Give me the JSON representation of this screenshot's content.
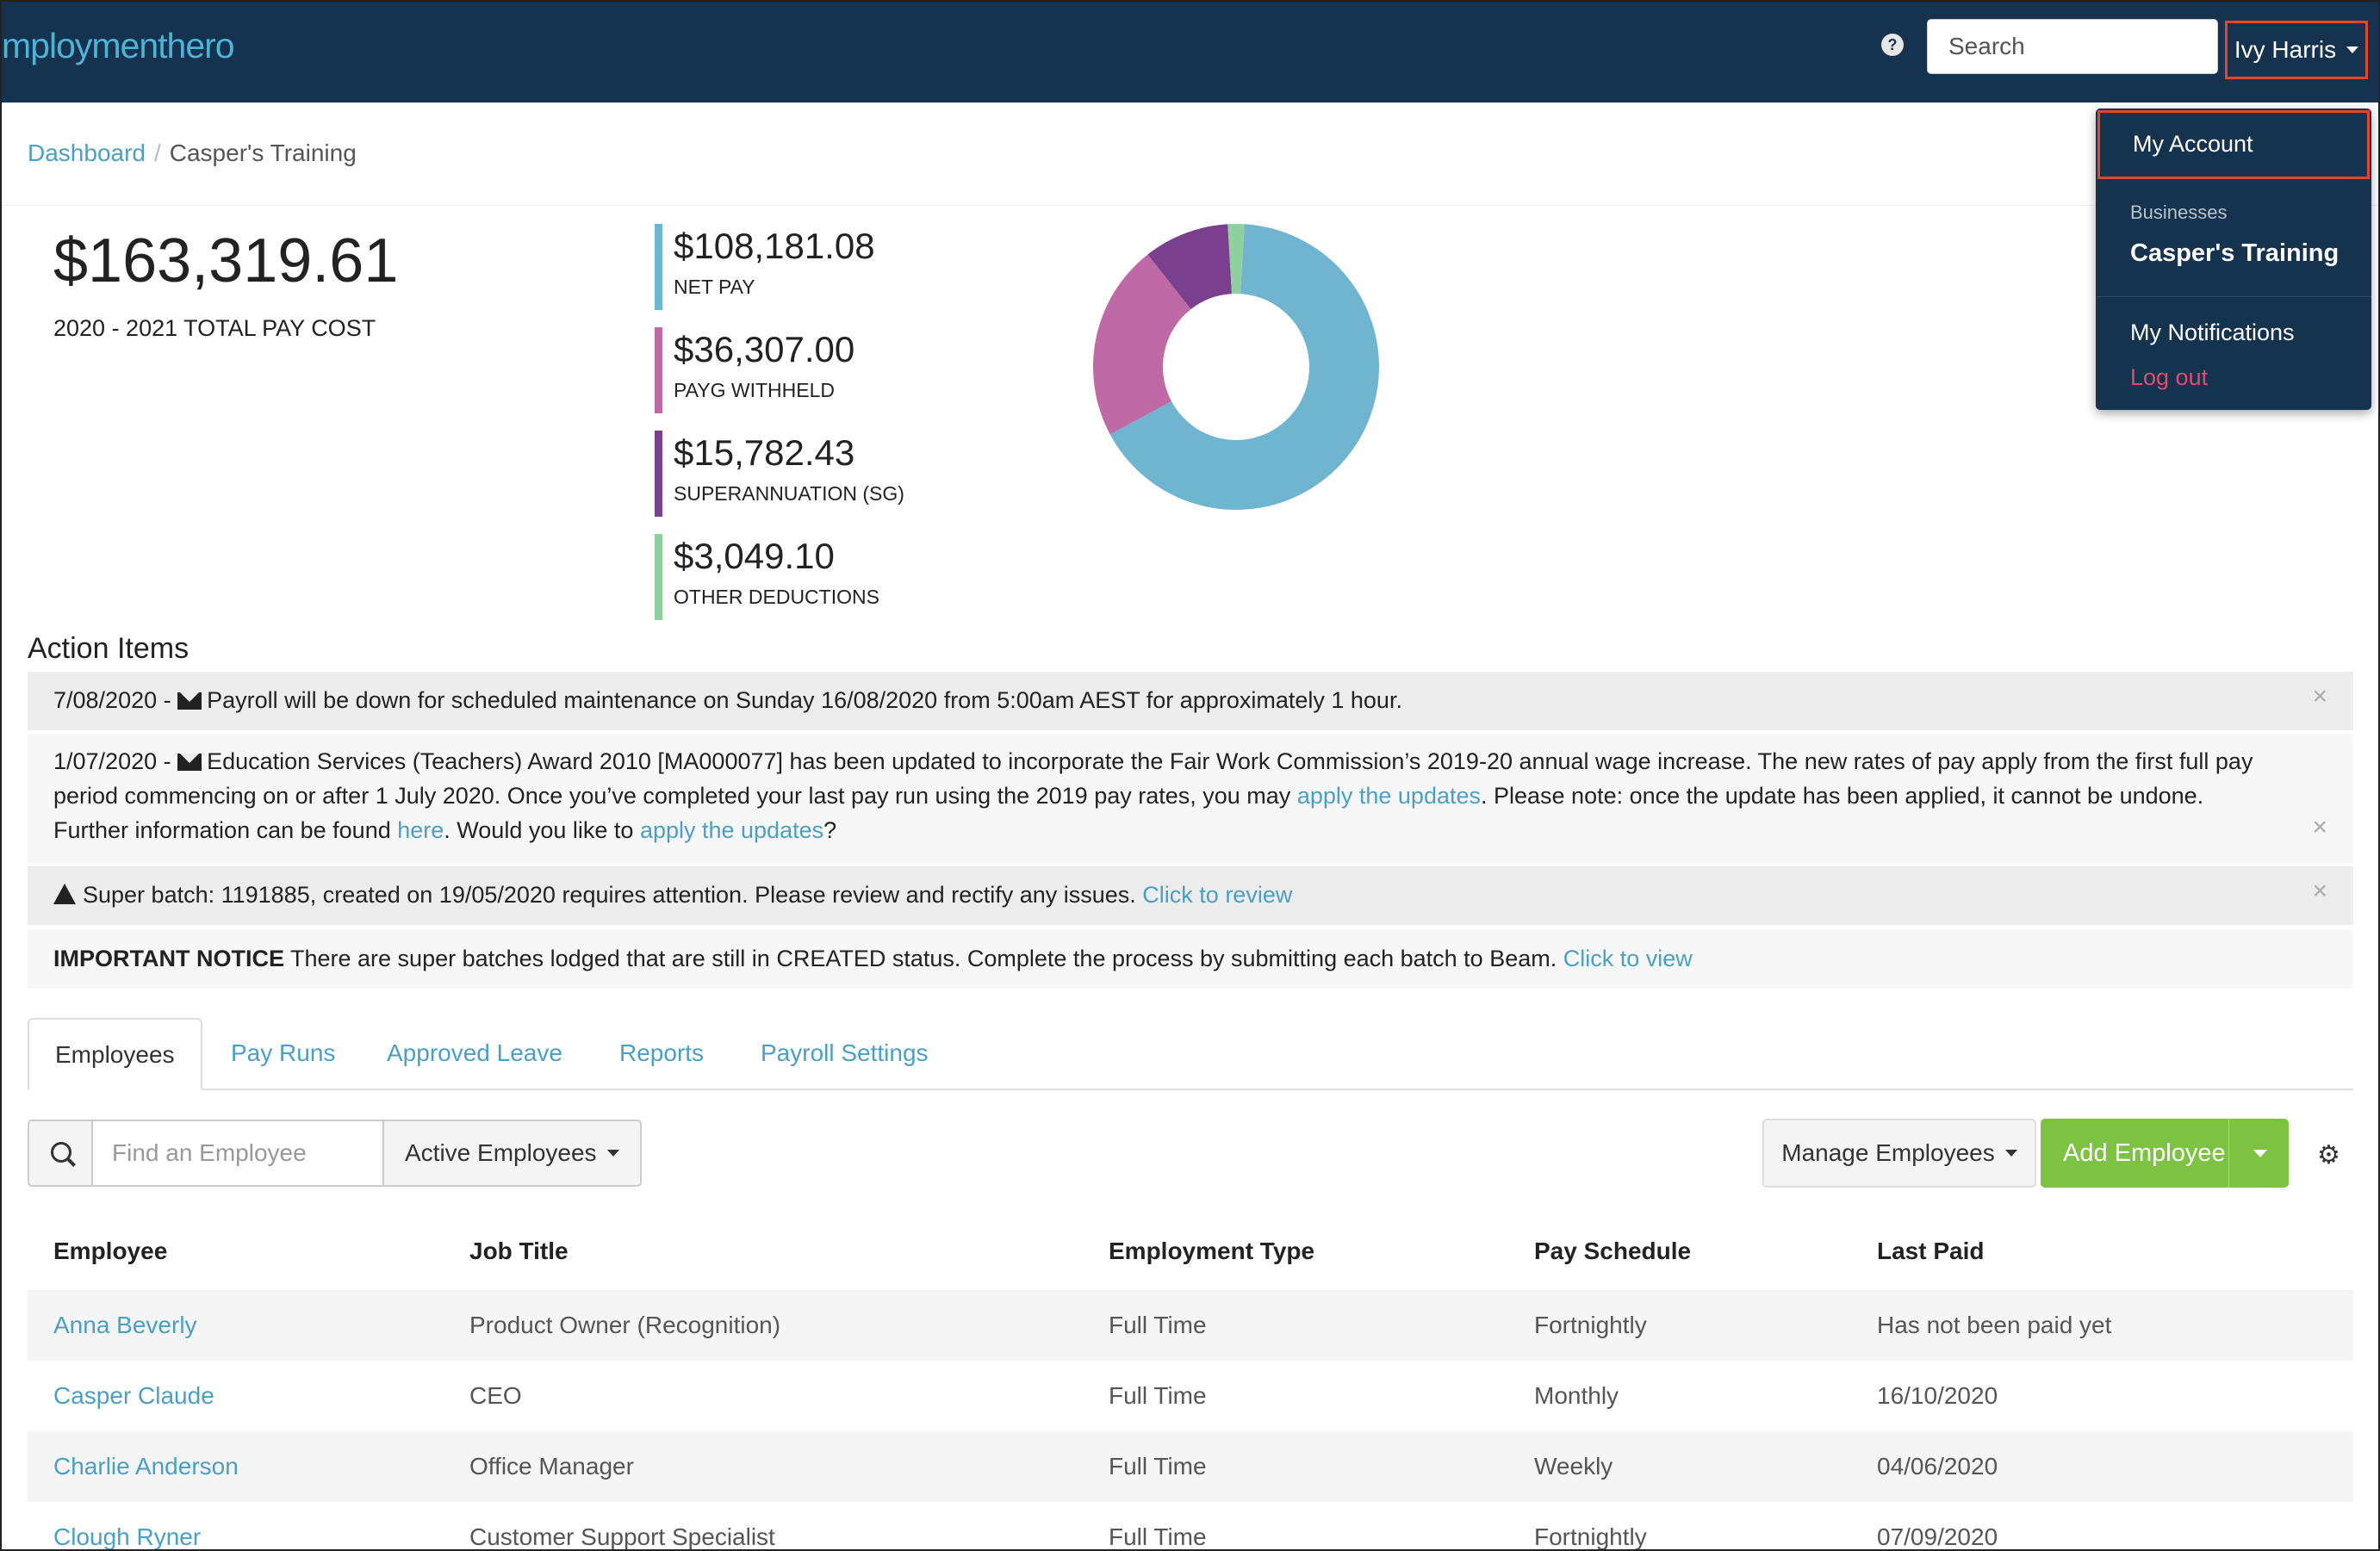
{
  "header": {
    "logo_text": "mploymenthero",
    "help_glyph": "?",
    "search_placeholder": "Search",
    "user_name": "Ivy Harris"
  },
  "user_menu": {
    "my_account": "My Account",
    "businesses_label": "Businesses",
    "business_name": "Casper's Training",
    "notifications": "My Notifications",
    "logout": "Log out"
  },
  "breadcrumb": {
    "home": "Dashboard",
    "separator": "/",
    "current": "Casper's Training"
  },
  "summary": {
    "total_amount": "$163,319.61",
    "total_label": "2020 - 2021 TOTAL PAY COST",
    "items": [
      {
        "value": "$108,181.08",
        "label": "NET PAY",
        "color": "#6fb5d0"
      },
      {
        "value": "$36,307.00",
        "label": "PAYG WITHHELD",
        "color": "#bf6aa6"
      },
      {
        "value": "$15,782.43",
        "label": "SUPERANNUATION (SG)",
        "color": "#7a3f8e"
      },
      {
        "value": "$3,049.10",
        "label": "OTHER DEDUCTIONS",
        "color": "#8fd19e"
      }
    ]
  },
  "action_items": {
    "title": "Action Items",
    "close_glyph": "×",
    "item1": {
      "prefix": "7/08/2020 -",
      "text": "Payroll will be down for scheduled maintenance on Sunday 16/08/2020 from 5:00am AEST for approximately 1 hour."
    },
    "item2": {
      "prefix": "1/07/2020 -",
      "text_a": "Education Services (Teachers) Award 2010 [MA000077] has been updated to incorporate the Fair Work Commission’s 2019-20 annual wage increase. The new rates of pay apply from the first full pay period commencing on or after 1 July 2020. Once you’ve completed your last pay run using the 2019 pay rates, you may",
      "link_a": "apply the updates",
      "text_b": ". Please note: once the update has been applied, it cannot be undone. Further information can be found",
      "link_b": "here",
      "text_c": ". Would you like to",
      "link_c": "apply the updates",
      "text_d": "?"
    },
    "item3": {
      "text": "Super batch: 1191885, created on 19/05/2020 requires attention. Please review and rectify any issues.",
      "link": "Click to review"
    },
    "item4": {
      "strong": "IMPORTANT NOTICE",
      "text": "There are super batches lodged that are still in CREATED status. Complete the process by submitting each batch to Beam.",
      "link": "Click to view"
    }
  },
  "tabs": [
    "Employees",
    "Pay Runs",
    "Approved Leave",
    "Reports",
    "Payroll Settings"
  ],
  "toolbar": {
    "find_placeholder": "Find an Employee",
    "filter_label": "Active Employees",
    "manage_label": "Manage Employees",
    "add_label": "Add Employee",
    "settings_glyph": "⚙"
  },
  "table": {
    "columns": [
      "Employee",
      "Job Title",
      "Employment Type",
      "Pay Schedule",
      "Last Paid"
    ],
    "rows": [
      [
        "Anna Beverly",
        "Product Owner (Recognition)",
        "Full Time",
        "Fortnightly",
        "Has not been paid yet"
      ],
      [
        "Casper Claude",
        "CEO",
        "Full Time",
        "Monthly",
        "16/10/2020"
      ],
      [
        "Charlie Anderson",
        "Office Manager",
        "Full Time",
        "Weekly",
        "04/06/2020"
      ],
      [
        "Clough Ryner",
        "Customer Support Specialist",
        "Full Time",
        "Fortnightly",
        "07/09/2020"
      ]
    ]
  },
  "chart_data": {
    "type": "pie",
    "categories": [
      "NET PAY",
      "PAYG WITHHELD",
      "SUPERANNUATION (SG)",
      "OTHER DEDUCTIONS"
    ],
    "values": [
      108181.08,
      36307.0,
      15782.43,
      3049.1
    ],
    "colors": [
      "#6fb5d0",
      "#bf6aa6",
      "#7a3f8e",
      "#8fd19e"
    ],
    "style": "donut",
    "title": ""
  }
}
